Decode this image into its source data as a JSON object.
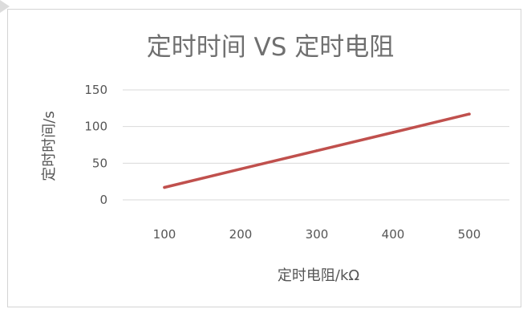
{
  "chart_data": {
    "type": "line",
    "title": "定时时间 VS 定时电阻",
    "xlabel": "定时电阻/kΩ",
    "ylabel": "定时时间/s",
    "x": [
      100,
      200,
      300,
      400,
      500
    ],
    "categories": [
      "100",
      "200",
      "300",
      "400",
      "500"
    ],
    "series": [
      {
        "values": [
          17,
          42,
          67,
          92,
          117
        ]
      }
    ],
    "ylim": [
      0,
      150
    ],
    "yticks": [
      0,
      50,
      100,
      150
    ],
    "grid": true,
    "legend": "none",
    "colors": {
      "line": "#c0504d",
      "grid": "#d9d9d9",
      "text": "#555555",
      "title": "#6f6f6f"
    }
  }
}
